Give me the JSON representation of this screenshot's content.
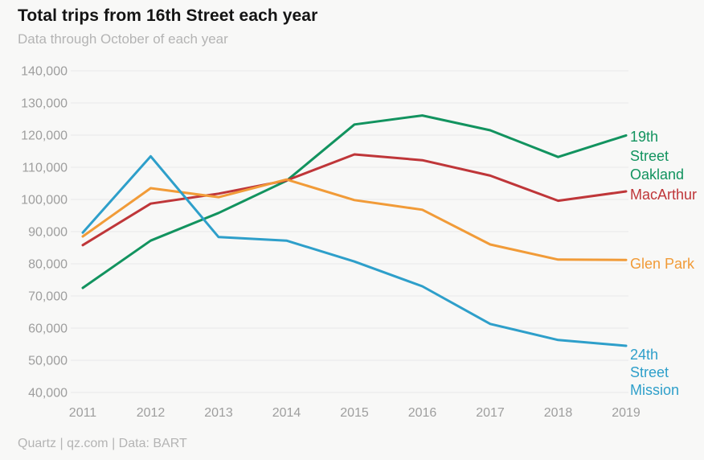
{
  "chart_data": {
    "type": "line",
    "title": "Total trips from 16th Street each year",
    "subtitle": "Data through October of each year",
    "source": "Quartz | qz.com | Data: BART",
    "x": [
      "2011",
      "2012",
      "2013",
      "2014",
      "2015",
      "2016",
      "2017",
      "2018",
      "2019"
    ],
    "xlabel": "",
    "ylabel": "",
    "ylim": [
      40000,
      140000
    ],
    "grid": true,
    "legend_position": "right-inline-labels",
    "y_ticks": [
      {
        "value": 140000,
        "label": "140,000"
      },
      {
        "value": 130000,
        "label": "130,000"
      },
      {
        "value": 120000,
        "label": "120,000"
      },
      {
        "value": 110000,
        "label": "110,000"
      },
      {
        "value": 100000,
        "label": "100,000"
      },
      {
        "value": 90000,
        "label": "90,000"
      },
      {
        "value": 80000,
        "label": "80,000"
      },
      {
        "value": 70000,
        "label": "70,000"
      },
      {
        "value": 60000,
        "label": "60,000"
      },
      {
        "value": 50000,
        "label": "50,000"
      },
      {
        "value": 40000,
        "label": "40,000"
      }
    ],
    "series": [
      {
        "name": "19th Street Oakland",
        "label_lines": [
          "19th",
          "Street",
          "Oakland"
        ],
        "color": "#12935f",
        "values": [
          72500,
          87200,
          95800,
          105800,
          123300,
          126100,
          121500,
          113200,
          119900
        ]
      },
      {
        "name": "MacArthur",
        "label_lines": [
          "MacArthur"
        ],
        "color": "#bf3639",
        "values": [
          85800,
          98700,
          101800,
          105900,
          114000,
          112200,
          107400,
          99600,
          102500
        ]
      },
      {
        "name": "Glen Park",
        "label_lines": [
          "Glen Park"
        ],
        "color": "#f19b38",
        "values": [
          88500,
          103500,
          100700,
          106200,
          99800,
          96800,
          86000,
          81300,
          81200
        ]
      },
      {
        "name": "24th Street Mission",
        "label_lines": [
          "24th",
          "Street",
          "Mission"
        ],
        "color": "#2e9fca",
        "values": [
          89700,
          113400,
          88300,
          87200,
          80700,
          73000,
          61300,
          56300,
          54500
        ]
      }
    ]
  }
}
